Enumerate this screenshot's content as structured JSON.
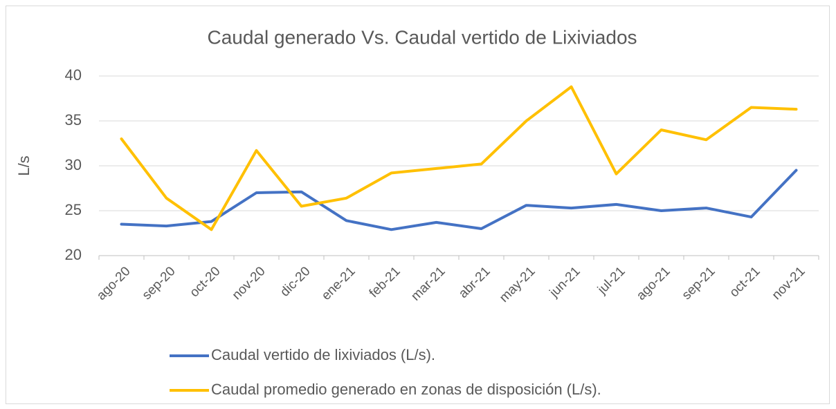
{
  "chart_data": {
    "type": "line",
    "title": "Caudal generado Vs. Caudal vertido de Lixiviados",
    "y_label": "L/s",
    "categories": [
      "ago-20",
      "sep-20",
      "oct-20",
      "nov-20",
      "dic-20",
      "ene-21",
      "feb-21",
      "mar-21",
      "abr-21",
      "may-21",
      "jun-21",
      "jul-21",
      "ago-21",
      "sep-21",
      "oct-21",
      "nov-21"
    ],
    "series": [
      {
        "name": "Caudal vertido de lixiviados (L/s).",
        "color": "#4472c4",
        "values": [
          23.5,
          23.3,
          23.8,
          27.0,
          27.1,
          23.9,
          22.9,
          23.7,
          23.0,
          25.6,
          25.3,
          25.7,
          25.0,
          25.3,
          24.3,
          29.5
        ]
      },
      {
        "name": "Caudal promedio generado en zonas de disposición (L/s).",
        "color": "#ffc000",
        "values": [
          33.0,
          26.4,
          22.9,
          31.7,
          25.5,
          26.4,
          29.2,
          29.7,
          30.2,
          35.0,
          38.8,
          29.1,
          34.0,
          32.9,
          36.5,
          36.3
        ]
      }
    ],
    "ylim": [
      20,
      40
    ],
    "yticks": [
      20,
      25,
      30,
      35,
      40
    ],
    "grid": true,
    "legend": "bottom"
  }
}
